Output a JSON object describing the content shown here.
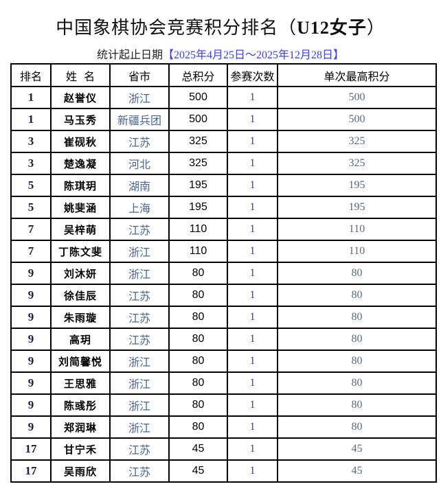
{
  "title": {
    "main": "中国象棋协会竞赛积分排名（",
    "group": "U12女子",
    "close": "）"
  },
  "subtitle": {
    "label": "统计起止日期",
    "dates": "【2025年4月25日～2025年12月28日】"
  },
  "table": {
    "headers": [
      "排名",
      "姓  名",
      "省市",
      "总积分",
      "参赛次数",
      "单次最高积分"
    ],
    "rows": [
      [
        "1",
        "赵誉仪",
        "浙江",
        "500",
        "1",
        "500"
      ],
      [
        "1",
        "马玉秀",
        "新疆兵团",
        "500",
        "1",
        "500"
      ],
      [
        "3",
        "崔砚秋",
        "江苏",
        "325",
        "1",
        "325"
      ],
      [
        "3",
        "楚逸凝",
        "河北",
        "325",
        "1",
        "325"
      ],
      [
        "5",
        "陈琪玥",
        "湖南",
        "195",
        "1",
        "195"
      ],
      [
        "5",
        "姚斐涵",
        "上海",
        "195",
        "1",
        "195"
      ],
      [
        "7",
        "吴梓萌",
        "江苏",
        "110",
        "1",
        "110"
      ],
      [
        "7",
        "丁陈文斐",
        "浙江",
        "110",
        "1",
        "110"
      ],
      [
        "9",
        "刘沐妍",
        "浙江",
        "80",
        "1",
        "80"
      ],
      [
        "9",
        "徐佳辰",
        "江苏",
        "80",
        "1",
        "80"
      ],
      [
        "9",
        "朱雨璇",
        "江苏",
        "80",
        "1",
        "80"
      ],
      [
        "9",
        "高玥",
        "江苏",
        "80",
        "1",
        "80"
      ],
      [
        "9",
        "刘简馨悦",
        "浙江",
        "80",
        "1",
        "80"
      ],
      [
        "9",
        "王思雅",
        "浙江",
        "80",
        "1",
        "80"
      ],
      [
        "9",
        "陈彧彤",
        "浙江",
        "80",
        "1",
        "80"
      ],
      [
        "9",
        "郑润琳",
        "浙江",
        "80",
        "1",
        "80"
      ],
      [
        "17",
        "甘宁禾",
        "江苏",
        "45",
        "1",
        "45"
      ],
      [
        "17",
        "吴雨欣",
        "江苏",
        "45",
        "1",
        "45"
      ]
    ]
  }
}
